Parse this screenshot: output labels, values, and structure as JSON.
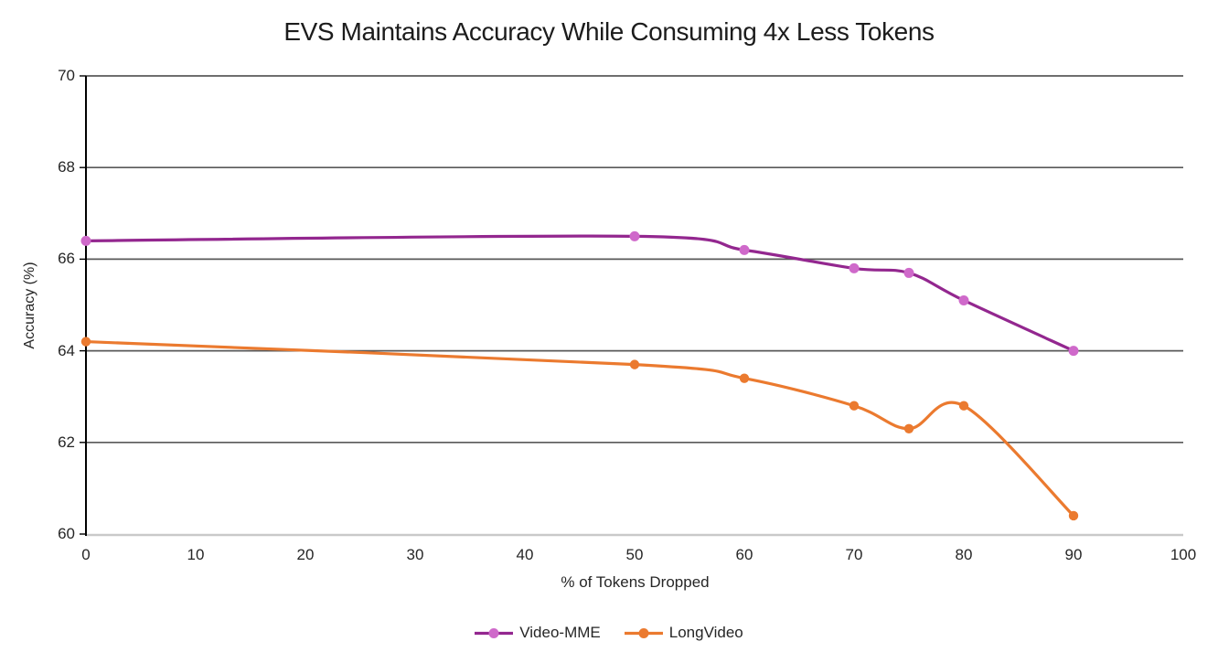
{
  "chart_data": {
    "type": "line",
    "title": "EVS Maintains Accuracy While Consuming 4x Less Tokens",
    "xlabel": "% of Tokens Dropped",
    "ylabel": "Accuracy (%)",
    "xlim": [
      0,
      100
    ],
    "ylim": [
      60,
      70
    ],
    "xticks": [
      0,
      10,
      20,
      30,
      40,
      50,
      60,
      70,
      80,
      90,
      100
    ],
    "yticks": [
      60,
      62,
      64,
      66,
      68,
      70
    ],
    "grid": "horizontal",
    "smooth": true,
    "legend_position": "bottom-center",
    "series": [
      {
        "name": "Video-MME",
        "line_color": "#93278F",
        "marker_color": "#CF69CA",
        "x": [
          0,
          50,
          60,
          70,
          75,
          80,
          90
        ],
        "y": [
          66.4,
          66.5,
          66.2,
          65.8,
          65.7,
          65.1,
          64.0
        ]
      },
      {
        "name": "LongVideo",
        "line_color": "#EB7A2F",
        "marker_color": "#EB7A2F",
        "x": [
          0,
          50,
          60,
          70,
          75,
          80,
          90
        ],
        "y": [
          64.2,
          63.7,
          63.4,
          62.8,
          62.3,
          62.8,
          60.4
        ]
      }
    ],
    "colors": {
      "gridline": "#595959",
      "x_axis_line": "#C9C9C9",
      "y_axis_line": "#000000",
      "text": "#262626"
    }
  }
}
